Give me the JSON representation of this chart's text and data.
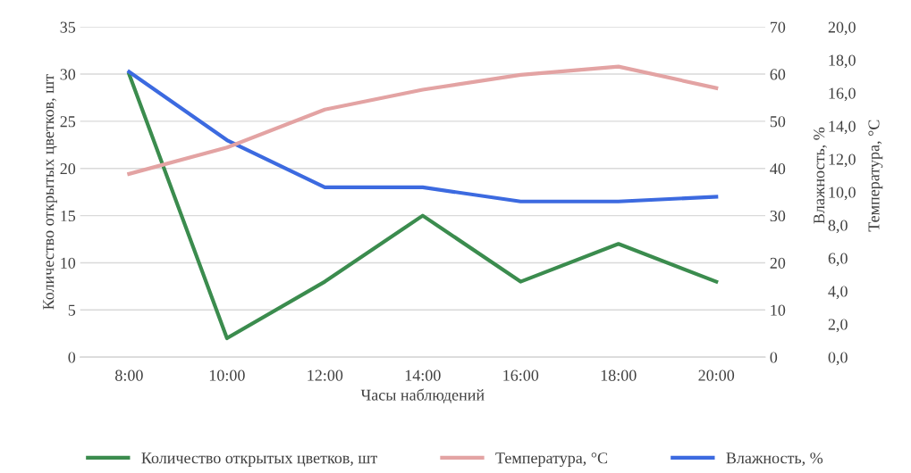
{
  "chart_data": {
    "type": "line",
    "xlabel": "Часы наблюдений",
    "ylabel": "Количество открытых цветков, шт",
    "y2label": "Влажность, %",
    "y3label": "Температура, °С",
    "categories": [
      "8:00",
      "10:00",
      "12:00",
      "14:00",
      "16:00",
      "18:00",
      "20:00"
    ],
    "series": [
      {
        "name": "Количество открытых цветков, шт",
        "color": "#3b8c4e",
        "values": [
          30,
          2,
          8,
          15,
          8,
          12,
          8
        ]
      },
      {
        "name": "Температура, °С",
        "color": "#e3a3a3",
        "axis": "y3",
        "values": [
          11.1,
          12.7,
          15.0,
          16.2,
          17.1,
          17.6,
          16.3
        ]
      },
      {
        "name": "Влажность, %",
        "color": "#3c6ae0",
        "axis": "y2",
        "values": [
          60.5,
          46,
          36,
          36,
          33,
          33,
          34
        ]
      }
    ],
    "ylim": [
      0,
      35
    ],
    "yticks": [
      0,
      5,
      10,
      15,
      20,
      25,
      30,
      35
    ],
    "y2lim": [
      0,
      70
    ],
    "y2ticks": [
      0,
      10,
      20,
      30,
      40,
      50,
      60,
      70
    ],
    "y3lim": [
      0,
      20
    ],
    "y3ticks": [
      {
        "value": 0,
        "label": "0,0"
      },
      {
        "value": 2,
        "label": "2,0"
      },
      {
        "value": 4,
        "label": "4,0"
      },
      {
        "value": 6,
        "label": "6,0"
      },
      {
        "value": 8,
        "label": "8,0"
      },
      {
        "value": 10,
        "label": "10,0"
      },
      {
        "value": 12,
        "label": "12,0"
      },
      {
        "value": 14,
        "label": "14,0"
      },
      {
        "value": 16,
        "label": "16,0"
      },
      {
        "value": 18,
        "label": "18,0"
      },
      {
        "value": 20,
        "label": "20,0"
      }
    ],
    "grid": "y",
    "legend": "bottom",
    "marker": "none",
    "line_style": "solid"
  }
}
